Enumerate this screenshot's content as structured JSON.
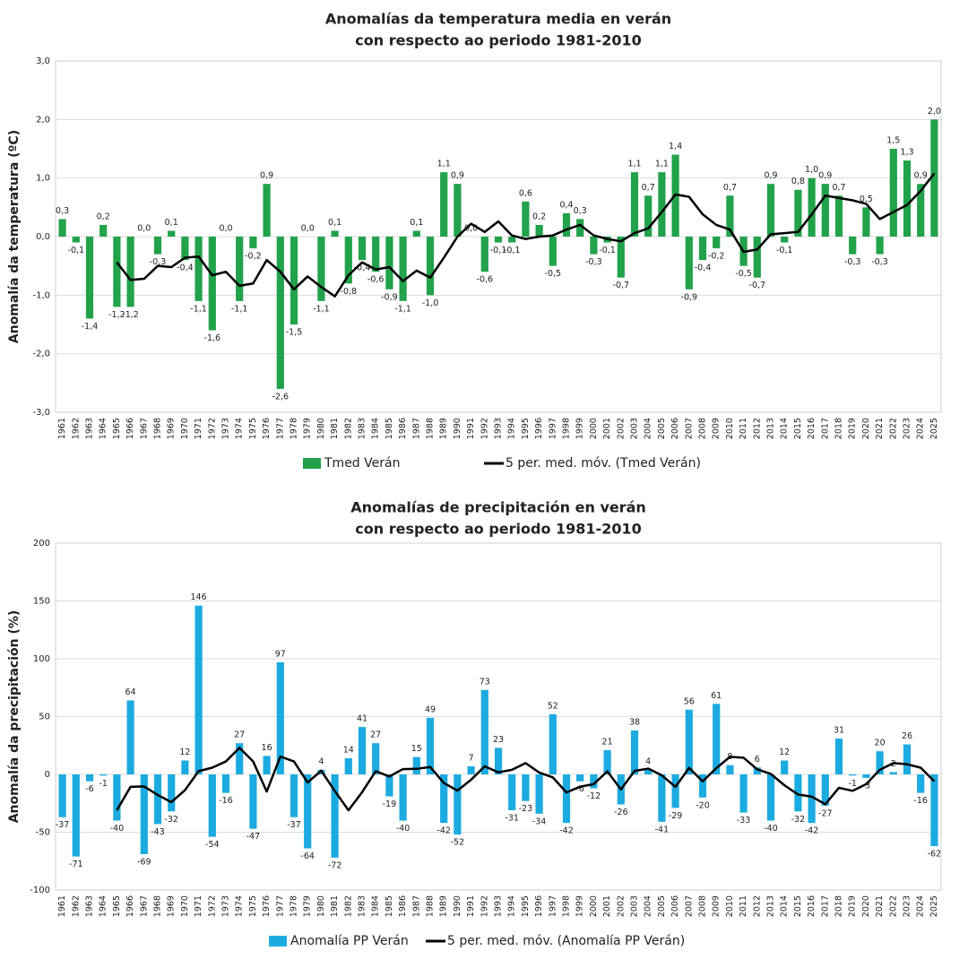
{
  "chart_data": [
    {
      "type": "bar",
      "title": [
        "Anomalías da temperatura media en verán",
        "con respecto ao periodo 1981-2010"
      ],
      "y_label": "Anomalía da temperatura (ºC)",
      "categories": [
        "1961",
        "1962",
        "1963",
        "1964",
        "1965",
        "1966",
        "1967",
        "1968",
        "1969",
        "1970",
        "1971",
        "1972",
        "1973",
        "1974",
        "1975",
        "1976",
        "1977",
        "1978",
        "1979",
        "1980",
        "1981",
        "1982",
        "1983",
        "1984",
        "1985",
        "1986",
        "1987",
        "1988",
        "1989",
        "1990",
        "1991",
        "1992",
        "1993",
        "1994",
        "1995",
        "1996",
        "1997",
        "1998",
        "1999",
        "2000",
        "2001",
        "2002",
        "2003",
        "2004",
        "2005",
        "2006",
        "2007",
        "2008",
        "2009",
        "2010",
        "2011",
        "2012",
        "2013",
        "2014",
        "2015",
        "2016",
        "2017",
        "2018",
        "2019",
        "2020",
        "2021",
        "2022",
        "2023",
        "2024",
        "2025"
      ],
      "series": [
        {
          "name": "Tmed Verán",
          "color": "#22a24b",
          "values": [
            0.3,
            -0.1,
            -1.4,
            0.2,
            -1.2,
            -1.2,
            0.0,
            -0.3,
            0.1,
            -0.4,
            -1.1,
            -1.6,
            0.0,
            -1.1,
            -0.2,
            0.9,
            -2.6,
            -1.5,
            0.0,
            -1.1,
            0.1,
            -0.8,
            -0.4,
            -0.6,
            -0.9,
            -1.1,
            0.1,
            -1.0,
            1.1,
            0.9,
            0.0,
            -0.6,
            -0.1,
            -0.1,
            0.6,
            0.2,
            -0.5,
            0.4,
            0.3,
            -0.3,
            -0.1,
            -0.7,
            1.1,
            0.7,
            1.1,
            1.4,
            -0.9,
            -0.4,
            -0.2,
            0.7,
            -0.5,
            -0.7,
            0.9,
            -0.1,
            0.8,
            1.0,
            0.9,
            0.7,
            -0.3,
            0.5,
            -0.3,
            1.5,
            1.3,
            0.9,
            2.0
          ],
          "value_labels": [
            "0,3",
            "-0,1",
            "-1,4",
            "0,2",
            "-1,2",
            "-1,2",
            "0,0",
            "-0,3",
            "0,1",
            "-0,4",
            "-1,1",
            "-1,6",
            "0,0",
            "-1,1",
            "-0,2",
            "0,9",
            "-2,6",
            "-1,5",
            "0,0",
            "-1,1",
            "0,1",
            "-0,8",
            "-0,4",
            "-0,6",
            "-0,9",
            "-1,1",
            "0,1",
            "-1,0",
            "1,1",
            "0,9",
            "0,0",
            "-0,6",
            "-0,1",
            "-0,1",
            "0,6",
            "0,2",
            "-0,5",
            "0,4",
            "0,3",
            "-0,3",
            "-0,1",
            "-0,7",
            "1,1",
            "0,7",
            "1,1",
            "1,4",
            "-0,9",
            "-0,4",
            "-0,2",
            "0,7",
            "-0,5",
            "-0,7",
            "0,9",
            "-0,1",
            "0,8",
            "1,0",
            "0,9",
            "0,7",
            "-0,3",
            "0,5",
            "-0,3",
            "1,5",
            "1,3",
            "0,9",
            "2,0"
          ]
        },
        {
          "name": "5 per. med. móv. (Tmed Verán)",
          "type": "line",
          "color": "#000000",
          "values": [
            null,
            null,
            null,
            null,
            -0.44,
            -0.74,
            -0.72,
            -0.5,
            -0.52,
            -0.36,
            -0.34,
            -0.66,
            -0.6,
            -0.84,
            -0.8,
            -0.4,
            -0.6,
            -0.9,
            -0.68,
            -0.86,
            -1.02,
            -0.66,
            -0.44,
            -0.56,
            -0.52,
            -0.76,
            -0.58,
            -0.7,
            -0.36,
            0.0,
            0.22,
            0.08,
            0.26,
            0.02,
            -0.04,
            0.0,
            0.02,
            0.12,
            0.2,
            0.02,
            -0.04,
            -0.08,
            0.06,
            0.14,
            0.42,
            0.72,
            0.68,
            0.38,
            0.2,
            0.12,
            -0.26,
            -0.22,
            0.04,
            0.06,
            0.08,
            0.38,
            0.7,
            0.66,
            0.62,
            0.56,
            0.3,
            0.42,
            0.54,
            0.78,
            1.08
          ]
        }
      ],
      "ylim": [
        -3,
        3
      ],
      "yticks": [
        {
          "value": -3,
          "label": "-3,0"
        },
        {
          "value": -2,
          "label": "-2,0"
        },
        {
          "value": -1,
          "label": "-1,0"
        },
        {
          "value": 0,
          "label": "0,0"
        },
        {
          "value": 1,
          "label": "1,0"
        },
        {
          "value": 2,
          "label": "2,0"
        },
        {
          "value": 3,
          "label": "3,0"
        }
      ],
      "grid": true
    },
    {
      "type": "bar",
      "title": [
        "Anomalías de precipitación en verán",
        "con respecto ao periodo 1981-2010"
      ],
      "y_label": "Anomalía da precipitación (%)",
      "categories": [
        "1961",
        "1962",
        "1963",
        "1964",
        "1965",
        "1966",
        "1967",
        "1968",
        "1969",
        "1970",
        "1971",
        "1972",
        "1973",
        "1974",
        "1975",
        "1976",
        "1977",
        "1978",
        "1979",
        "1980",
        "1981",
        "1982",
        "1983",
        "1984",
        "1985",
        "1986",
        "1987",
        "1988",
        "1989",
        "1990",
        "1991",
        "1992",
        "1993",
        "1994",
        "1995",
        "1996",
        "1997",
        "1998",
        "1999",
        "2000",
        "2001",
        "2002",
        "2003",
        "2004",
        "2005",
        "2006",
        "2007",
        "2008",
        "2009",
        "2010",
        "2011",
        "2012",
        "2013",
        "2014",
        "2015",
        "2016",
        "2017",
        "2018",
        "2019",
        "2020",
        "2021",
        "2022",
        "2023",
        "2024",
        "2025"
      ],
      "series": [
        {
          "name": "Anomalía PP Verán",
          "color": "#1cabe0",
          "values": [
            -37,
            -71,
            -6,
            -1,
            -40,
            64,
            -69,
            -43,
            -32,
            12,
            146,
            -54,
            -16,
            27,
            -47,
            16,
            97,
            -37,
            -64,
            4,
            -72,
            14,
            41,
            27,
            -19,
            -40,
            15,
            49,
            -42,
            -52,
            7,
            73,
            23,
            -31,
            -23,
            -34,
            52,
            -42,
            -6,
            -12,
            21,
            -26,
            38,
            4,
            -41,
            -29,
            56,
            -20,
            61,
            8,
            -33,
            6,
            -40,
            12,
            -32,
            -42,
            -27,
            31,
            -1,
            -3,
            20,
            2,
            26,
            -16,
            -62
          ]
        },
        {
          "name": "5 per. med. móv. (Anomalía PP Verán)",
          "type": "line",
          "color": "#000000",
          "values": [
            null,
            null,
            null,
            null,
            -31,
            -10.8,
            -10.4,
            -17.8,
            -24,
            -13.6,
            2.8,
            5.8,
            11.2,
            23,
            11.2,
            -14.8,
            15.4,
            11.2,
            -7,
            3.2,
            -14.4,
            -31,
            -15.4,
            2.8,
            -1.8,
            4.6,
            4.8,
            6.4,
            -7.4,
            -14,
            -4.6,
            7,
            1.8,
            4,
            9.8,
            1.6,
            -2.6,
            -15.6,
            -10.6,
            -8.4,
            2.6,
            -13,
            3,
            5,
            -0.8,
            -10.8,
            5.6,
            -6,
            5.4,
            15.2,
            14.4,
            4.4,
            0.4,
            -9.4,
            -17.4,
            -19.2,
            -25.8,
            -11.6,
            -14.2,
            -8.4,
            4,
            9.8,
            8.8,
            5.8,
            -6
          ]
        }
      ],
      "ylim": [
        -100,
        200
      ],
      "yticks": [
        -100,
        -50,
        0,
        50,
        100,
        150,
        200
      ],
      "grid": true
    }
  ]
}
